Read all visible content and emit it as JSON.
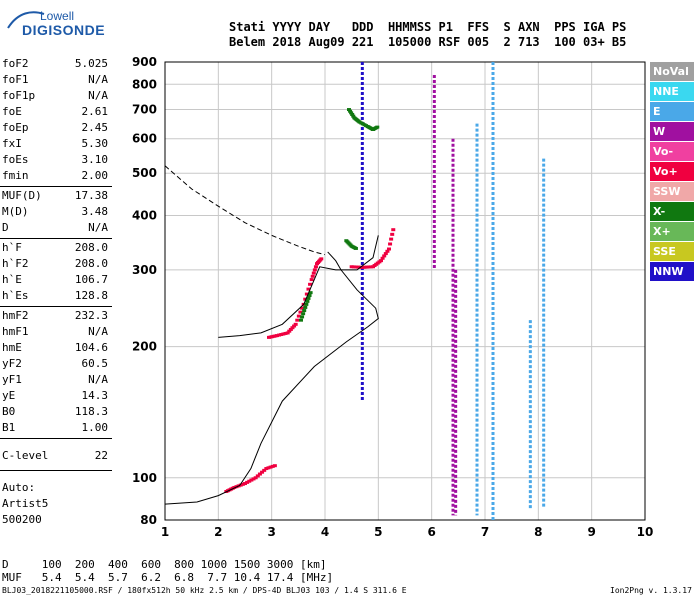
{
  "logo": {
    "line1": "Lowell",
    "line2": "DIGISONDE"
  },
  "header": {
    "labels": [
      "Stati",
      "YYYY",
      "DAY",
      "DDD",
      "HHMMSS",
      "P1",
      "FFS",
      "S",
      "AXN",
      "PPS",
      "IGA",
      "PS"
    ],
    "values": [
      "Belem",
      "2018",
      "Aug09",
      "221",
      "105000",
      "RSF",
      "005",
      "2",
      "713",
      "100",
      "03+",
      "B5"
    ]
  },
  "params": [
    {
      "k": "foF2",
      "v": "5.025"
    },
    {
      "k": "foF1",
      "v": "N/A"
    },
    {
      "k": "foF1p",
      "v": "N/A"
    },
    {
      "k": "foE",
      "v": "2.61"
    },
    {
      "k": "foEp",
      "v": "2.45"
    },
    {
      "k": "fxI",
      "v": "5.30"
    },
    {
      "k": "foEs",
      "v": "3.10"
    },
    {
      "k": "fmin",
      "v": "2.00"
    },
    {
      "k": "MUF(D)",
      "v": "17.38"
    },
    {
      "k": "M(D)",
      "v": "3.48"
    },
    {
      "k": "D",
      "v": "N/A"
    },
    {
      "k": "h`F",
      "v": "208.0"
    },
    {
      "k": "h`F2",
      "v": "208.0"
    },
    {
      "k": "h`E",
      "v": "106.7"
    },
    {
      "k": "h`Es",
      "v": "128.8"
    },
    {
      "k": "hmF2",
      "v": "232.3"
    },
    {
      "k": "hmF1",
      "v": "N/A"
    },
    {
      "k": "hmE",
      "v": "104.6"
    },
    {
      "k": "yF2",
      "v": "60.5"
    },
    {
      "k": "yF1",
      "v": "N/A"
    },
    {
      "k": "yE",
      "v": "14.3"
    },
    {
      "k": "B0",
      "v": "118.3"
    },
    {
      "k": "B1",
      "v": "1.00"
    },
    {
      "k": "C-level",
      "v": "22"
    }
  ],
  "autoscale": {
    "line1": "Auto:",
    "line2": "Artist5",
    "line3": "500200"
  },
  "legend": [
    {
      "label": "NoVal",
      "color": "#a0a0a0"
    },
    {
      "label": "NNE",
      "color": "#3ad8f0"
    },
    {
      "label": "E",
      "color": "#4aa8e8"
    },
    {
      "label": "W",
      "color": "#a010a0"
    },
    {
      "label": "Vo-",
      "color": "#f040a0"
    },
    {
      "label": "Vo+",
      "color": "#f00040"
    },
    {
      "label": "SSW",
      "color": "#f0a8a8"
    },
    {
      "label": "X-",
      "color": "#107810"
    },
    {
      "label": "X+",
      "color": "#68b858"
    },
    {
      "label": "SSE",
      "color": "#c8c820"
    },
    {
      "label": "NNW",
      "color": "#2010c8"
    }
  ],
  "muf_table": {
    "row1": "D     100  200  400  600  800 1000 1500 3000 [km]",
    "row2": "MUF   5.4  5.4  5.7  6.2  6.8  7.7 10.4 17.4 [MHz]"
  },
  "footer": "BLJ03_2018221105000.RSF / 180fx512h 50 kHz 2.5 km / DPS-4D BLJ03 103 / 1.4 S 311.6 E",
  "version": "Ion2Png v. 1.3.17",
  "chart_data": {
    "type": "scatter",
    "xlim": [
      1,
      10
    ],
    "ylim": [
      80,
      900
    ],
    "y_scale": "log",
    "x_ticks": [
      1,
      2,
      3,
      4,
      5,
      6,
      7,
      8,
      9,
      10
    ],
    "y_ticks": [
      80,
      100,
      200,
      300,
      400,
      500,
      600,
      700,
      800,
      900
    ],
    "grid": true,
    "echoes": [
      {
        "f": 4.7,
        "h0": 150,
        "h1": 900,
        "color": "#2010c8"
      },
      {
        "f": 6.05,
        "h0": 300,
        "h1": 840,
        "color": "#a010a0"
      },
      {
        "f": 7.15,
        "h0": 80,
        "h1": 900,
        "color": "#4aa8e8"
      },
      {
        "f": 6.85,
        "h0": 82,
        "h1": 650,
        "color": "#4aa8e8"
      },
      {
        "f": 6.4,
        "h0": 82,
        "h1": 600,
        "color": "#a010a0"
      },
      {
        "f": 6.45,
        "h0": 82,
        "h1": 300,
        "color": "#a010a0"
      },
      {
        "f": 8.1,
        "h0": 85,
        "h1": 540,
        "color": "#4aa8e8"
      },
      {
        "f": 7.85,
        "h0": 85,
        "h1": 230,
        "color": "#4aa8e8"
      }
    ],
    "traces": [
      {
        "color": "#f00040",
        "pts": [
          [
            2.95,
            210
          ],
          [
            3.1,
            212
          ],
          [
            3.3,
            215
          ],
          [
            3.45,
            225
          ],
          [
            3.6,
            250
          ],
          [
            3.75,
            285
          ],
          [
            3.85,
            310
          ],
          [
            3.95,
            320
          ]
        ]
      },
      {
        "color": "#f00040",
        "pts": [
          [
            4.5,
            305
          ],
          [
            4.7,
            304
          ],
          [
            4.9,
            305
          ],
          [
            5.05,
            315
          ],
          [
            5.2,
            335
          ],
          [
            5.3,
            380
          ]
        ]
      },
      {
        "color": "#f00040",
        "pts": [
          [
            2.15,
            93
          ],
          [
            2.3,
            95
          ],
          [
            2.5,
            97
          ],
          [
            2.7,
            100
          ],
          [
            2.9,
            105
          ],
          [
            3.1,
            107
          ]
        ]
      },
      {
        "color": "#107810",
        "pts": [
          [
            4.4,
            350
          ],
          [
            4.5,
            340
          ],
          [
            4.6,
            335
          ]
        ]
      },
      {
        "color": "#107810",
        "pts": [
          [
            4.45,
            700
          ],
          [
            4.55,
            670
          ],
          [
            4.65,
            655
          ],
          [
            4.8,
            640
          ],
          [
            4.9,
            630
          ],
          [
            5.0,
            640
          ]
        ]
      },
      {
        "color": "#107810",
        "pts": [
          [
            3.55,
            230
          ],
          [
            3.65,
            250
          ],
          [
            3.75,
            270
          ]
        ]
      }
    ],
    "profile": [
      [
        1.0,
        87
      ],
      [
        1.6,
        88
      ],
      [
        2.0,
        91
      ],
      [
        2.4,
        96
      ],
      [
        2.61,
        105
      ],
      [
        2.8,
        120
      ],
      [
        3.2,
        150
      ],
      [
        3.8,
        180
      ],
      [
        4.4,
        205
      ],
      [
        4.8,
        222
      ],
      [
        5.0,
        232
      ],
      [
        4.95,
        245
      ],
      [
        4.6,
        270
      ],
      [
        4.3,
        300
      ],
      [
        4.2,
        315
      ],
      [
        4.05,
        330
      ]
    ],
    "dashed": [
      [
        1.0,
        520
      ],
      [
        1.5,
        460
      ],
      [
        2.0,
        420
      ],
      [
        2.5,
        385
      ],
      [
        3.0,
        360
      ],
      [
        3.5,
        340
      ],
      [
        3.8,
        330
      ],
      [
        4.0,
        325
      ]
    ],
    "virtual": [
      [
        2.0,
        210
      ],
      [
        2.4,
        212
      ],
      [
        2.8,
        215
      ],
      [
        3.2,
        225
      ],
      [
        3.6,
        250
      ],
      [
        3.9,
        305
      ],
      [
        4.2,
        300
      ],
      [
        4.6,
        300
      ],
      [
        4.9,
        320
      ],
      [
        5.0,
        360
      ]
    ]
  }
}
